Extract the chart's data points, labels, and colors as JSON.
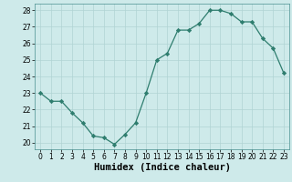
{
  "x": [
    0,
    1,
    2,
    3,
    4,
    5,
    6,
    7,
    8,
    9,
    10,
    11,
    12,
    13,
    14,
    15,
    16,
    17,
    18,
    19,
    20,
    21,
    22,
    23
  ],
  "y": [
    23.0,
    22.5,
    22.5,
    21.8,
    21.2,
    20.4,
    20.3,
    19.9,
    20.5,
    21.2,
    23.0,
    25.0,
    25.4,
    26.8,
    26.8,
    27.2,
    28.0,
    28.0,
    27.8,
    27.3,
    27.3,
    26.3,
    25.7,
    24.2
  ],
  "line_color": "#2e7d6e",
  "marker": "D",
  "marker_size": 2.2,
  "bg_color": "#ceeaea",
  "grid_color": "#b0d4d4",
  "xlabel": "Humidex (Indice chaleur)",
  "ylim": [
    19.6,
    28.4
  ],
  "xlim": [
    -0.5,
    23.5
  ],
  "yticks": [
    20,
    21,
    22,
    23,
    24,
    25,
    26,
    27,
    28
  ],
  "xticks": [
    0,
    1,
    2,
    3,
    4,
    5,
    6,
    7,
    8,
    9,
    10,
    11,
    12,
    13,
    14,
    15,
    16,
    17,
    18,
    19,
    20,
    21,
    22,
    23
  ],
  "tick_fontsize": 5.5,
  "xlabel_fontsize": 7.5,
  "xlabel_fontweight": "bold",
  "linewidth": 0.9
}
